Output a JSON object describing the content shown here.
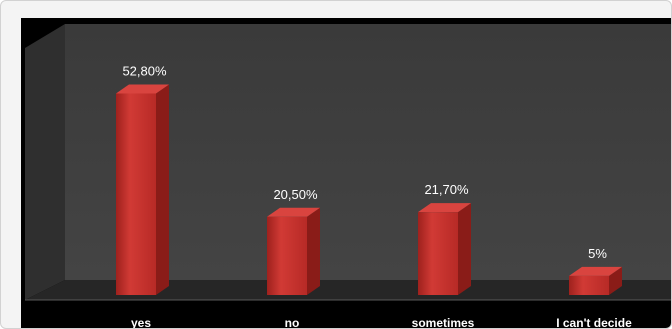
{
  "chart_data": {
    "type": "bar",
    "categories": [
      "yes",
      "no",
      "sometimes",
      "I can't decide"
    ],
    "values": [
      52.8,
      20.5,
      21.7,
      5
    ],
    "data_labels": [
      "52,80%",
      "20,50%",
      "21,70%",
      "5%"
    ],
    "ylim": [
      0,
      60
    ],
    "grid": false,
    "legend": "none",
    "colors": {
      "bar_front": "#c8302c",
      "bar_side": "#8a1c18",
      "bar_top": "#d9443f",
      "wall": "#3b3b3b",
      "floor": "#2b2b2b",
      "background": "#000000",
      "label_text": "#ffffff"
    }
  }
}
